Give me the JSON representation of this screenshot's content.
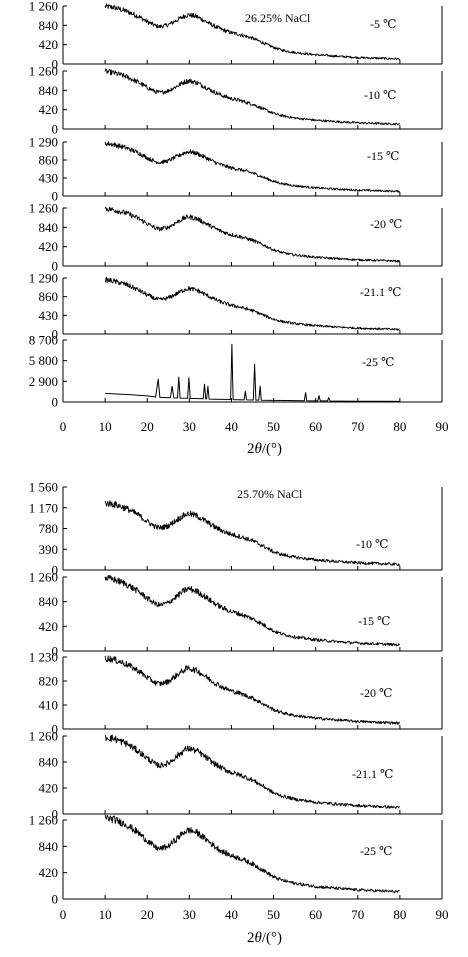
{
  "chart_data": [
    {
      "type": "line",
      "title": "26.25% NaCl",
      "xlabel_parts": [
        "2",
        "θ",
        "/(°)"
      ],
      "xlim": [
        0,
        90
      ],
      "xticks": [
        "0",
        "10",
        "20",
        "30",
        "40",
        "50",
        "60",
        "70",
        "80",
        "90"
      ],
      "panels": [
        {
          "label": "-5 ℃",
          "ylim": [
            0,
            1260
          ],
          "yticks": [
            {
              "v": 0,
              "t": "0"
            },
            {
              "v": 420,
              "t": "420"
            },
            {
              "v": 840,
              "t": "840"
            },
            {
              "v": 1260,
              "t": "1 260"
            }
          ],
          "x": [
            10,
            12,
            15,
            18,
            20,
            22,
            23,
            25,
            27,
            29,
            30,
            32,
            34,
            36,
            38,
            40,
            42,
            45,
            48,
            50,
            52,
            55,
            60,
            65,
            70,
            75,
            80
          ],
          "y": [
            1250,
            1230,
            1150,
            1030,
            920,
            830,
            810,
            850,
            950,
            1050,
            1070,
            1020,
            920,
            820,
            740,
            680,
            640,
            560,
            440,
            360,
            300,
            250,
            200,
            170,
            140,
            125,
            110
          ]
        },
        {
          "label": "-10 ℃",
          "ylim": [
            0,
            1260
          ],
          "yticks": [
            {
              "v": 0,
              "t": "0"
            },
            {
              "v": 420,
              "t": "420"
            },
            {
              "v": 840,
              "t": "840"
            },
            {
              "v": 1260,
              "t": "1 260"
            }
          ],
          "x": [
            10,
            12,
            15,
            18,
            20,
            22,
            23,
            25,
            27,
            29,
            30,
            32,
            34,
            36,
            38,
            40,
            42,
            45,
            48,
            50,
            52,
            55,
            60,
            65,
            70,
            75,
            80
          ],
          "y": [
            1250,
            1220,
            1140,
            1010,
            900,
            810,
            790,
            830,
            930,
            1030,
            1050,
            1000,
            900,
            800,
            720,
            660,
            620,
            540,
            420,
            340,
            290,
            240,
            190,
            160,
            135,
            120,
            105
          ]
        },
        {
          "label": "-15 ℃",
          "ylim": [
            0,
            1290
          ],
          "yticks": [
            {
              "v": 0,
              "t": "0"
            },
            {
              "v": 430,
              "t": "430"
            },
            {
              "v": 860,
              "t": "860"
            },
            {
              "v": 1290,
              "t": "1 290"
            }
          ],
          "x": [
            10,
            12,
            15,
            18,
            20,
            22,
            23,
            25,
            27,
            29,
            30,
            32,
            34,
            36,
            38,
            40,
            42,
            45,
            48,
            50,
            52,
            55,
            60,
            65,
            70,
            75,
            80
          ],
          "y": [
            1260,
            1230,
            1150,
            1030,
            910,
            820,
            800,
            840,
            940,
            1040,
            1060,
            1010,
            910,
            810,
            730,
            670,
            630,
            550,
            430,
            350,
            295,
            245,
            195,
            165,
            140,
            125,
            110
          ]
        },
        {
          "label": "-20 ℃",
          "ylim": [
            0,
            1260
          ],
          "yticks": [
            {
              "v": 0,
              "t": "0"
            },
            {
              "v": 420,
              "t": "420"
            },
            {
              "v": 840,
              "t": "840"
            },
            {
              "v": 1260,
              "t": "1 260"
            }
          ],
          "x": [
            10,
            12,
            15,
            18,
            20,
            22,
            23,
            25,
            27,
            29,
            30,
            32,
            34,
            36,
            38,
            40,
            42,
            45,
            48,
            50,
            52,
            55,
            60,
            65,
            70,
            75,
            80
          ],
          "y": [
            1250,
            1220,
            1150,
            1030,
            920,
            820,
            800,
            840,
            950,
            1050,
            1070,
            1020,
            920,
            820,
            740,
            680,
            640,
            560,
            440,
            350,
            290,
            240,
            190,
            160,
            135,
            120,
            105
          ]
        },
        {
          "label": "-21.1 ℃",
          "ylim": [
            0,
            1290
          ],
          "yticks": [
            {
              "v": 0,
              "t": "0"
            },
            {
              "v": 430,
              "t": "430"
            },
            {
              "v": 860,
              "t": "860"
            },
            {
              "v": 1290,
              "t": "1 290"
            }
          ],
          "x": [
            10,
            12,
            15,
            18,
            20,
            22,
            23,
            25,
            27,
            29,
            30,
            32,
            34,
            36,
            38,
            40,
            42,
            45,
            48,
            50,
            52,
            55,
            60,
            65,
            70,
            75,
            80
          ],
          "y": [
            1250,
            1220,
            1140,
            1010,
            900,
            810,
            790,
            830,
            930,
            1030,
            1050,
            1000,
            900,
            800,
            720,
            660,
            620,
            540,
            420,
            340,
            290,
            240,
            190,
            160,
            135,
            120,
            105
          ]
        },
        {
          "label": "-25 ℃",
          "ylim": [
            0,
            8700
          ],
          "yticks": [
            {
              "v": 0,
              "t": "0"
            },
            {
              "v": 2900,
              "t": "2 900"
            },
            {
              "v": 5800,
              "t": "5 800"
            },
            {
              "v": 8700,
              "t": "8 700"
            }
          ],
          "x": [
            10,
            15,
            20,
            22,
            22.6,
            23,
            25.5,
            25.9,
            26.3,
            27.2,
            27.5,
            27.8,
            29.6,
            29.9,
            30.2,
            33.3,
            33.6,
            33.9,
            34.1,
            34.4,
            34.7,
            39.8,
            40.1,
            40.4,
            43,
            43.3,
            43.6,
            45.2,
            45.5,
            45.8,
            46.5,
            46.8,
            47.1,
            50,
            57.3,
            57.6,
            57.9,
            60.5,
            60.8,
            61.1,
            62.8,
            63.1,
            63.4,
            65,
            70,
            75,
            80
          ],
          "y": [
            1200,
            1050,
            850,
            700,
            3200,
            650,
            600,
            2200,
            580,
            560,
            3500,
            550,
            520,
            3400,
            500,
            450,
            2500,
            430,
            420,
            2200,
            400,
            350,
            8100,
            330,
            300,
            1500,
            290,
            280,
            5300,
            270,
            260,
            2200,
            250,
            220,
            180,
            1300,
            170,
            160,
            900,
            155,
            150,
            600,
            145,
            130,
            110,
            100,
            90
          ]
        }
      ]
    },
    {
      "type": "line",
      "title": "25.70% NaCl",
      "xlabel_parts": [
        "2",
        "θ",
        "/(°)"
      ],
      "xlim": [
        0,
        90
      ],
      "xticks": [
        "0",
        "10",
        "20",
        "30",
        "40",
        "50",
        "60",
        "70",
        "80",
        "90"
      ],
      "panels": [
        {
          "label": "-10 ℃",
          "ylim": [
            0,
            1560
          ],
          "yticks": [
            {
              "v": 0,
              "t": "0"
            },
            {
              "v": 390,
              "t": "390"
            },
            {
              "v": 780,
              "t": "780"
            },
            {
              "v": 1170,
              "t": "1 170"
            },
            {
              "v": 1560,
              "t": "1 560"
            }
          ],
          "x": [
            10,
            12,
            15,
            18,
            20,
            22,
            23,
            25,
            27,
            29,
            30,
            32,
            34,
            36,
            38,
            40,
            42,
            45,
            48,
            50,
            52,
            55,
            60,
            65,
            70,
            75,
            80
          ],
          "y": [
            1260,
            1240,
            1160,
            1030,
            910,
            810,
            790,
            830,
            940,
            1040,
            1060,
            1010,
            910,
            810,
            730,
            670,
            630,
            550,
            430,
            340,
            290,
            240,
            190,
            160,
            135,
            120,
            105
          ]
        },
        {
          "label": "-15 ℃",
          "ylim": [
            0,
            1260
          ],
          "yticks": [
            {
              "v": 0,
              "t": "0"
            },
            {
              "v": 420,
              "t": "420"
            },
            {
              "v": 840,
              "t": "840"
            },
            {
              "v": 1260,
              "t": "1 260"
            }
          ],
          "x": [
            10,
            12,
            15,
            18,
            20,
            22,
            23,
            25,
            27,
            29,
            30,
            32,
            34,
            36,
            38,
            40,
            42,
            45,
            48,
            50,
            52,
            55,
            60,
            65,
            70,
            75,
            80
          ],
          "y": [
            1240,
            1220,
            1140,
            1010,
            900,
            800,
            780,
            820,
            930,
            1040,
            1060,
            1010,
            910,
            810,
            730,
            670,
            630,
            550,
            430,
            340,
            290,
            240,
            190,
            160,
            135,
            120,
            105
          ]
        },
        {
          "label": "-20 ℃",
          "ylim": [
            0,
            1230
          ],
          "yticks": [
            {
              "v": 0,
              "t": "0"
            },
            {
              "v": 410,
              "t": "410"
            },
            {
              "v": 820,
              "t": "820"
            },
            {
              "v": 1230,
              "t": "1 230"
            }
          ],
          "x": [
            10,
            12,
            15,
            18,
            20,
            22,
            23,
            25,
            27,
            29,
            30,
            32,
            34,
            36,
            38,
            40,
            42,
            45,
            48,
            50,
            52,
            55,
            60,
            65,
            70,
            75,
            80
          ],
          "y": [
            1210,
            1190,
            1110,
            990,
            880,
            790,
            770,
            810,
            920,
            1020,
            1040,
            990,
            890,
            790,
            710,
            650,
            610,
            530,
            410,
            330,
            280,
            230,
            185,
            155,
            130,
            115,
            100
          ]
        },
        {
          "label": "-21.1 ℃",
          "ylim": [
            0,
            1260
          ],
          "yticks": [
            {
              "v": 0,
              "t": "0"
            },
            {
              "v": 420,
              "t": "420"
            },
            {
              "v": 840,
              "t": "840"
            },
            {
              "v": 1260,
              "t": "1 260"
            }
          ],
          "x": [
            10,
            12,
            15,
            18,
            20,
            22,
            23,
            25,
            27,
            29,
            30,
            32,
            34,
            36,
            38,
            40,
            42,
            45,
            48,
            50,
            52,
            55,
            60,
            65,
            70,
            75,
            80
          ],
          "y": [
            1240,
            1220,
            1140,
            1010,
            900,
            800,
            780,
            820,
            930,
            1040,
            1060,
            1010,
            910,
            810,
            730,
            670,
            630,
            550,
            430,
            340,
            290,
            240,
            190,
            160,
            135,
            120,
            105
          ]
        },
        {
          "label": "-25 ℃",
          "ylim": [
            0,
            1260
          ],
          "yticks": [
            {
              "v": 0,
              "t": "0"
            },
            {
              "v": 420,
              "t": "420"
            },
            {
              "v": 840,
              "t": "840"
            },
            {
              "v": 1260,
              "t": "1 260"
            }
          ],
          "x": [
            10,
            12,
            15,
            18,
            20,
            22,
            23,
            25,
            27,
            29,
            30,
            32,
            34,
            36,
            38,
            40,
            42,
            45,
            48,
            50,
            52,
            55,
            60,
            65,
            70,
            75,
            80
          ],
          "y": [
            1300,
            1270,
            1190,
            1050,
            930,
            820,
            800,
            840,
            960,
            1080,
            1100,
            1050,
            950,
            840,
            750,
            690,
            650,
            560,
            440,
            350,
            300,
            250,
            200,
            170,
            145,
            130,
            115
          ]
        }
      ]
    }
  ]
}
